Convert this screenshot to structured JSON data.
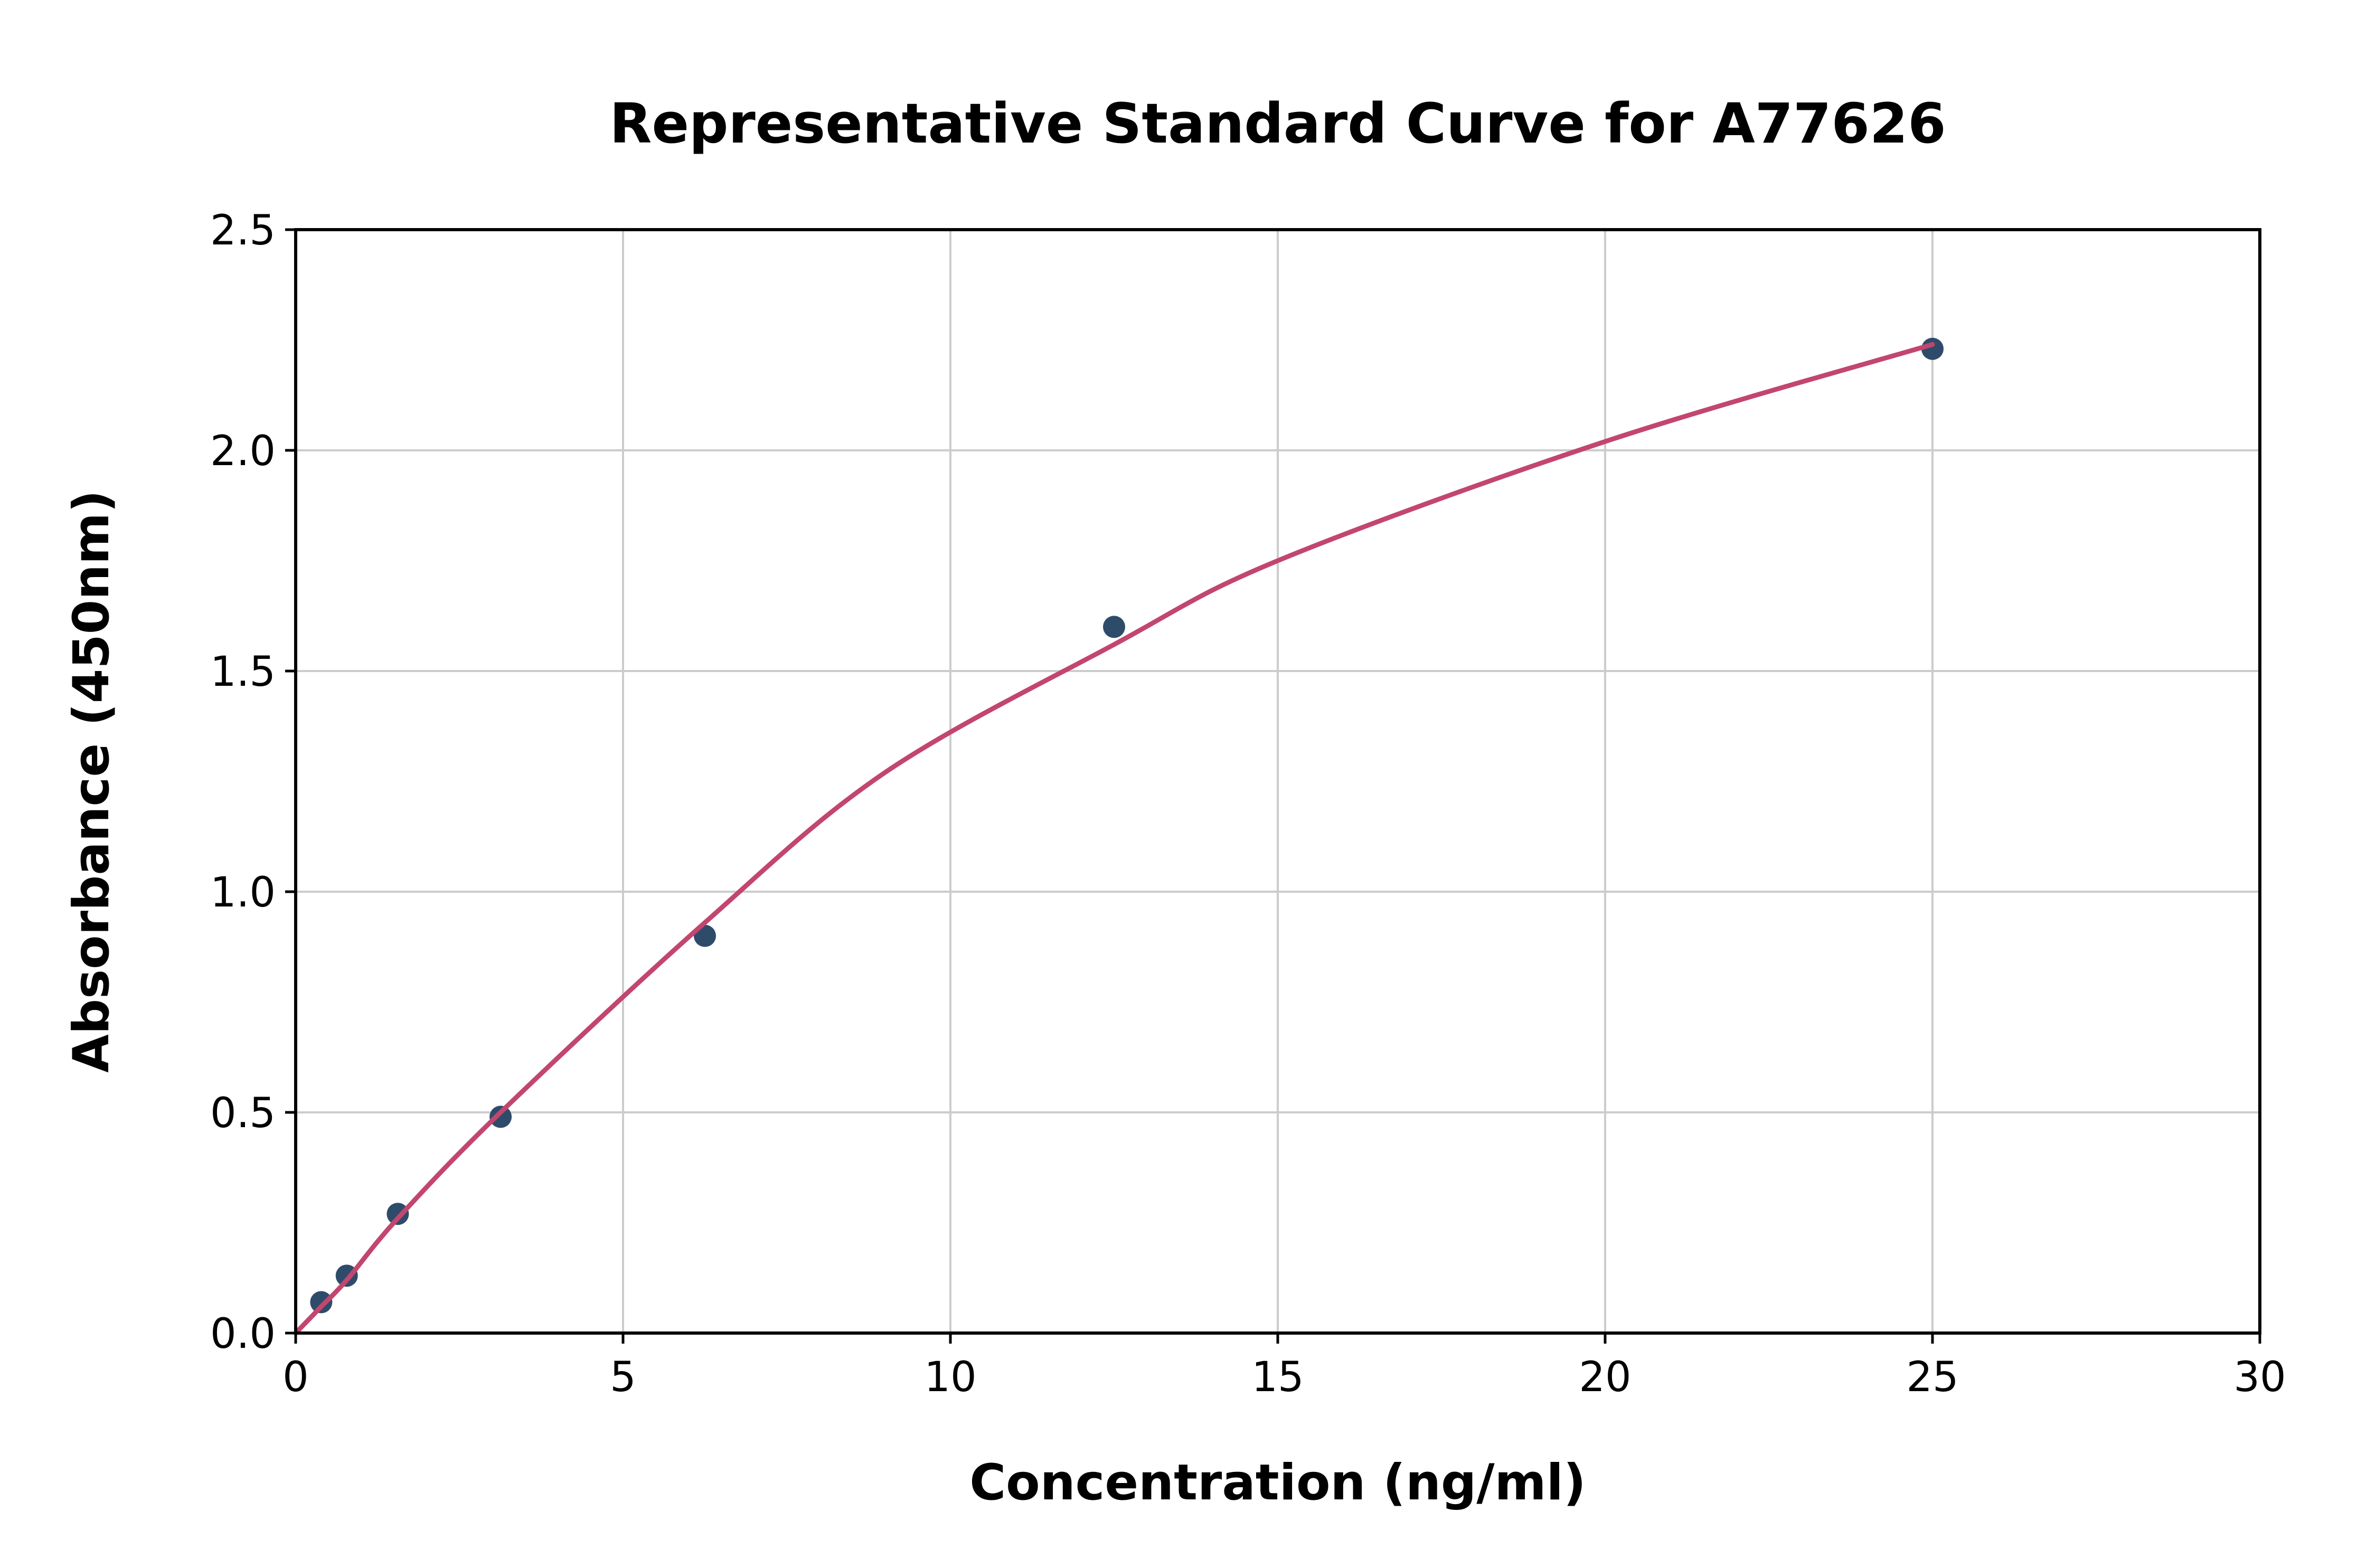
{
  "figure": {
    "title": "Representative Standard Curve for A77626",
    "x_axis_label": "Concentration (ng/ml)",
    "y_axis_label": "Absorbance (450nm)"
  },
  "chart_data": {
    "type": "scatter",
    "title": "Representative Standard Curve for A77626",
    "xlabel": "Concentration (ng/ml)",
    "ylabel": "Absorbance (450nm)",
    "xlim": [
      0,
      30
    ],
    "ylim": [
      0,
      2.5
    ],
    "grid": true,
    "legend": "none",
    "xticks": [
      {
        "v": 0,
        "label": "0"
      },
      {
        "v": 5,
        "label": "5"
      },
      {
        "v": 10,
        "label": "10"
      },
      {
        "v": 15,
        "label": "15"
      },
      {
        "v": 20,
        "label": "20"
      },
      {
        "v": 25,
        "label": "25"
      },
      {
        "v": 30,
        "label": "30"
      }
    ],
    "yticks": [
      {
        "v": 0.0,
        "label": "0.0"
      },
      {
        "v": 0.5,
        "label": "0.5"
      },
      {
        "v": 1.0,
        "label": "1.0"
      },
      {
        "v": 1.5,
        "label": "1.5"
      },
      {
        "v": 2.0,
        "label": "2.0"
      },
      {
        "v": 2.5,
        "label": "2.5"
      }
    ],
    "series": [
      {
        "name": "standards",
        "type": "scatter-points",
        "points": [
          {
            "x": 0.39,
            "y": 0.07
          },
          {
            "x": 0.78,
            "y": 0.13
          },
          {
            "x": 1.56,
            "y": 0.27
          },
          {
            "x": 3.13,
            "y": 0.49
          },
          {
            "x": 6.25,
            "y": 0.9
          },
          {
            "x": 12.5,
            "y": 1.6
          },
          {
            "x": 25.0,
            "y": 2.23
          }
        ]
      },
      {
        "name": "fitted-curve",
        "type": "line",
        "points": [
          {
            "x": 0.0,
            "y": 0.0
          },
          {
            "x": 0.39,
            "y": 0.06
          },
          {
            "x": 0.78,
            "y": 0.12
          },
          {
            "x": 1.56,
            "y": 0.26
          },
          {
            "x": 3.13,
            "y": 0.5
          },
          {
            "x": 6.25,
            "y": 0.93
          },
          {
            "x": 9.0,
            "y": 1.27
          },
          {
            "x": 12.5,
            "y": 1.56
          },
          {
            "x": 15.0,
            "y": 1.75
          },
          {
            "x": 20.0,
            "y": 2.02
          },
          {
            "x": 25.0,
            "y": 2.24
          }
        ]
      }
    ],
    "colors": {
      "point": "#2f4b6a",
      "curve": "#c2466e",
      "grid": "#cccccc",
      "axis": "#000000",
      "background": "#ffffff"
    }
  }
}
